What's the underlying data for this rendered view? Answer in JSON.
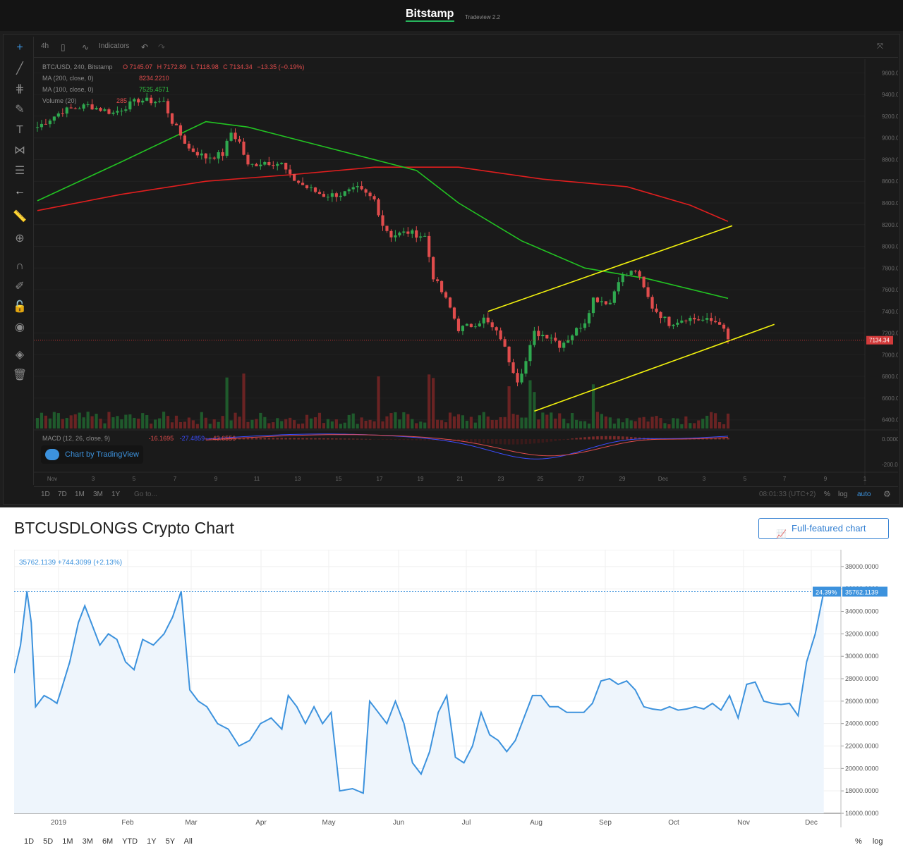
{
  "top": {
    "brand": "Bitstamp",
    "brand_sub": "Tradeview 2.2",
    "toolbar": {
      "interval": "4h",
      "indicators": "Indicators"
    },
    "legend": {
      "symbol": "BTC/USD, 240, Bitstamp",
      "o": "O 7145.07",
      "h": "H 7172.89",
      "l": "L 7118.98",
      "c": "C 7134.34",
      "chg": "−13.35 (−0.19%)",
      "ma200": "MA (200, close, 0)",
      "ma200_val": "8234.2210",
      "ma100": "MA (100, close, 0)",
      "ma100_val": "7525.4571",
      "volume": "Volume (20)",
      "volume_val": "285",
      "macd": "MACD (12, 26, close, 9)",
      "macd_v1": "-16.1695",
      "macd_v2": "-27.4859",
      "macd_v3": "-43.6556"
    },
    "badge": "Chart by TradingView",
    "ranges": [
      "1D",
      "7D",
      "1M",
      "3M",
      "1Y"
    ],
    "goto": "Go to...",
    "time": "08:01:33 (UTC+2)",
    "pct": "%",
    "log": "log",
    "auto": "auto",
    "colors": {
      "up": "#2fa84f",
      "down": "#e04c4c",
      "ma100": "#22c322",
      "ma200": "#e01e1e",
      "channel": "#f2f20d"
    }
  },
  "bottom": {
    "title": "BTCUSDLONGS Crypto Chart",
    "ff_button": "Full-featured chart",
    "head": "35762.1139  +744.3099 (+2.13%)",
    "last_pct": "24.39%",
    "last_val": "35762.1139",
    "ranges": [
      "1D",
      "5D",
      "1M",
      "3M",
      "6M",
      "YTD",
      "1Y",
      "5Y",
      "All"
    ],
    "pct": "%",
    "log": "log",
    "colors": {
      "line": "#3c92dd",
      "fill": "#eef5fc"
    }
  },
  "chart_data": [
    {
      "type": "candlestick",
      "title": "BTC/USD, 240, Bitstamp",
      "x_tick_labels": [
        "Nov",
        "3",
        "5",
        "7",
        "9",
        "11",
        "13",
        "15",
        "17",
        "19",
        "21",
        "23",
        "25",
        "27",
        "29",
        "Dec",
        "3",
        "5",
        "7",
        "9",
        "1"
      ],
      "y_tick_labels": [
        "9600.00",
        "9400.00",
        "9200.00",
        "9000.00",
        "8800.00",
        "8600.00",
        "8400.00",
        "8200.00",
        "8000.00",
        "7800.00",
        "7600.00",
        "7400.00",
        "7200.00",
        "7000.00",
        "6800.00",
        "6600.00",
        "6400.00"
      ],
      "ylim": [
        6320,
        9700
      ],
      "last_price": "7134.34",
      "close_path": [
        [
          0,
          9100
        ],
        [
          6,
          9250
        ],
        [
          12,
          9300
        ],
        [
          18,
          9230
        ],
        [
          24,
          9350
        ],
        [
          30,
          9330
        ],
        [
          32,
          9150
        ],
        [
          36,
          8900
        ],
        [
          40,
          8820
        ],
        [
          44,
          8850
        ],
        [
          46,
          9050
        ],
        [
          48,
          8960
        ],
        [
          50,
          8740
        ],
        [
          54,
          8780
        ],
        [
          58,
          8760
        ],
        [
          60,
          8640
        ],
        [
          64,
          8540
        ],
        [
          68,
          8470
        ],
        [
          72,
          8480
        ],
        [
          76,
          8530
        ],
        [
          80,
          8430
        ],
        [
          82,
          8200
        ],
        [
          84,
          8100
        ],
        [
          88,
          8130
        ],
        [
          92,
          8090
        ],
        [
          94,
          7720
        ],
        [
          96,
          7580
        ],
        [
          98,
          7430
        ],
        [
          100,
          7240
        ],
        [
          103,
          7270
        ],
        [
          106,
          7330
        ],
        [
          110,
          7160
        ],
        [
          112,
          6950
        ],
        [
          114,
          6770
        ],
        [
          116,
          6940
        ],
        [
          118,
          7200
        ],
        [
          122,
          7170
        ],
        [
          124,
          7090
        ],
        [
          126,
          7150
        ],
        [
          130,
          7310
        ],
        [
          132,
          7520
        ],
        [
          136,
          7480
        ],
        [
          138,
          7700
        ],
        [
          142,
          7780
        ],
        [
          144,
          7610
        ],
        [
          146,
          7440
        ],
        [
          150,
          7290
        ],
        [
          154,
          7340
        ],
        [
          158,
          7320
        ],
        [
          162,
          7300
        ],
        [
          164,
          7134
        ]
      ],
      "ma100": [
        [
          0,
          8420
        ],
        [
          20,
          8780
        ],
        [
          40,
          9150
        ],
        [
          50,
          9100
        ],
        [
          70,
          8900
        ],
        [
          90,
          8700
        ],
        [
          100,
          8400
        ],
        [
          115,
          8050
        ],
        [
          130,
          7800
        ],
        [
          145,
          7700
        ],
        [
          164,
          7520
        ]
      ],
      "ma200": [
        [
          0,
          8330
        ],
        [
          20,
          8480
        ],
        [
          40,
          8600
        ],
        [
          60,
          8660
        ],
        [
          80,
          8730
        ],
        [
          100,
          8730
        ],
        [
          120,
          8620
        ],
        [
          140,
          8550
        ],
        [
          155,
          8380
        ],
        [
          164,
          8230
        ]
      ],
      "channel_upper": [
        [
          107,
          7400
        ],
        [
          165,
          8190
        ]
      ],
      "channel_lower": [
        [
          118,
          6480
        ],
        [
          175,
          7280
        ]
      ],
      "macd_range": [
        -250,
        50
      ]
    },
    {
      "type": "area",
      "title": "BTCUSDLONGS Crypto Chart",
      "x_tick_labels": [
        "2019",
        "Feb",
        "Mar",
        "Apr",
        "May",
        "Jun",
        "Jul",
        "Aug",
        "Sep",
        "Oct",
        "Nov",
        "Dec"
      ],
      "y_tick_labels": [
        "38000.0000",
        "36000.0000",
        "34000.0000",
        "32000.0000",
        "30000.0000",
        "28000.0000",
        "26000.0000",
        "24000.0000",
        "22000.0000",
        "20000.0000",
        "18000.0000",
        "16000.0000"
      ],
      "ylim": [
        16000,
        39500
      ],
      "points": [
        [
          0,
          28500
        ],
        [
          3,
          31000
        ],
        [
          6,
          35800
        ],
        [
          8,
          33000
        ],
        [
          10,
          25500
        ],
        [
          14,
          26500
        ],
        [
          17,
          26200
        ],
        [
          20,
          25800
        ],
        [
          22,
          27000
        ],
        [
          26,
          29500
        ],
        [
          30,
          33000
        ],
        [
          33,
          34500
        ],
        [
          36,
          33000
        ],
        [
          40,
          31000
        ],
        [
          44,
          32000
        ],
        [
          48,
          31500
        ],
        [
          52,
          29500
        ],
        [
          56,
          28800
        ],
        [
          60,
          31500
        ],
        [
          65,
          31000
        ],
        [
          70,
          32000
        ],
        [
          74,
          33500
        ],
        [
          78,
          35800
        ],
        [
          82,
          27000
        ],
        [
          86,
          26000
        ],
        [
          90,
          25500
        ],
        [
          95,
          24000
        ],
        [
          100,
          23500
        ],
        [
          105,
          22000
        ],
        [
          110,
          22500
        ],
        [
          115,
          24000
        ],
        [
          120,
          24500
        ],
        [
          125,
          23500
        ],
        [
          128,
          26500
        ],
        [
          132,
          25500
        ],
        [
          136,
          24000
        ],
        [
          140,
          25500
        ],
        [
          144,
          24000
        ],
        [
          148,
          25000
        ],
        [
          152,
          18000
        ],
        [
          158,
          18200
        ],
        [
          163,
          17800
        ],
        [
          166,
          26000
        ],
        [
          170,
          25000
        ],
        [
          174,
          24000
        ],
        [
          178,
          26000
        ],
        [
          182,
          24000
        ],
        [
          186,
          20500
        ],
        [
          190,
          19500
        ],
        [
          194,
          21500
        ],
        [
          198,
          25000
        ],
        [
          202,
          26500
        ],
        [
          206,
          21000
        ],
        [
          210,
          20500
        ],
        [
          214,
          22000
        ],
        [
          218,
          25000
        ],
        [
          222,
          23000
        ],
        [
          226,
          22500
        ],
        [
          230,
          21500
        ],
        [
          234,
          22500
        ],
        [
          238,
          24500
        ],
        [
          242,
          26500
        ],
        [
          246,
          26500
        ],
        [
          250,
          25500
        ],
        [
          254,
          25500
        ],
        [
          258,
          25000
        ],
        [
          262,
          25000
        ],
        [
          266,
          25000
        ],
        [
          270,
          25800
        ],
        [
          274,
          27800
        ],
        [
          278,
          28000
        ],
        [
          282,
          27500
        ],
        [
          286,
          27800
        ],
        [
          290,
          27000
        ],
        [
          294,
          25500
        ],
        [
          298,
          25300
        ],
        [
          302,
          25200
        ],
        [
          306,
          25500
        ],
        [
          310,
          25200
        ],
        [
          314,
          25300
        ],
        [
          318,
          25500
        ],
        [
          322,
          25300
        ],
        [
          326,
          25800
        ],
        [
          330,
          25200
        ],
        [
          334,
          26500
        ],
        [
          338,
          24500
        ],
        [
          342,
          27500
        ],
        [
          346,
          27700
        ],
        [
          350,
          26000
        ],
        [
          354,
          25800
        ],
        [
          358,
          25700
        ],
        [
          362,
          25800
        ],
        [
          366,
          24700
        ],
        [
          370,
          29500
        ],
        [
          374,
          32000
        ],
        [
          378,
          35762
        ]
      ]
    }
  ]
}
